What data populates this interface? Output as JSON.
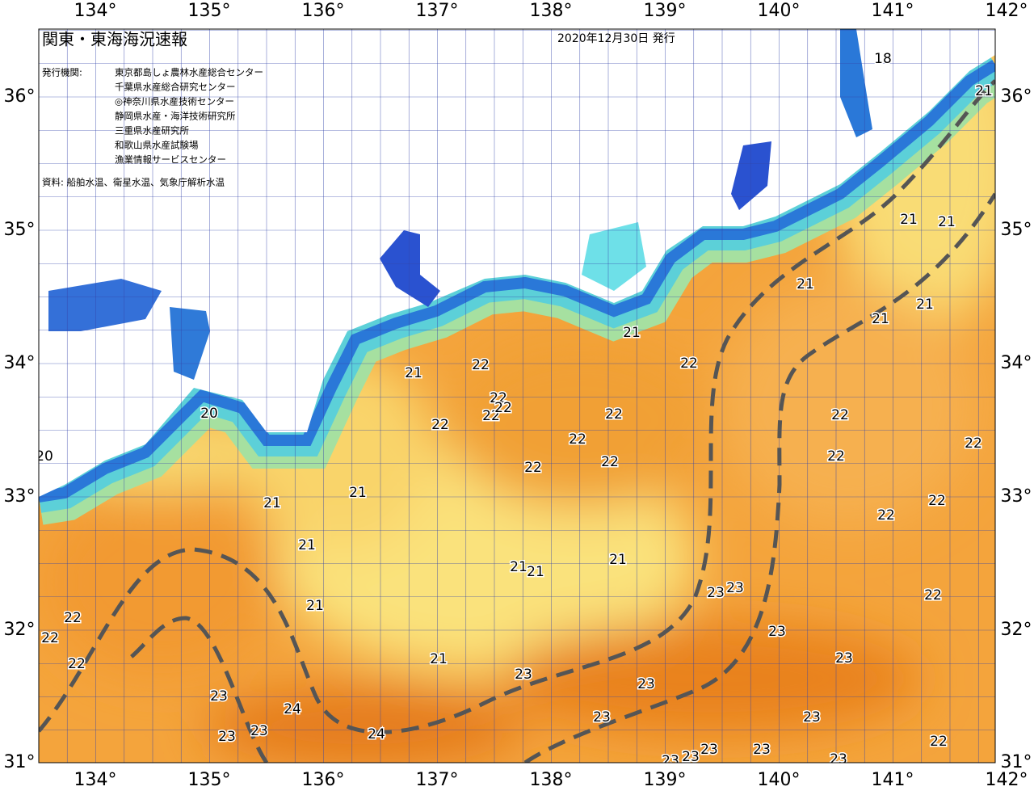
{
  "header": {
    "title": "関東・東海海況速報",
    "date": "2020年12月30日 発行"
  },
  "issuers": {
    "label": "発行機関:",
    "names": [
      "東京都島しょ農林水産総合センター",
      "千葉県水産総合研究センター",
      "◎神奈川県水産技術センター",
      "静岡県水産・海洋技術研究所",
      "三重県水産研究所",
      "和歌山県水産試験場",
      "漁業情報サービスセンター"
    ]
  },
  "source": "資料: 船舶水温、衛星水温、気象庁解析水温",
  "axes": {
    "longitudes": [
      "134°",
      "135°",
      "136°",
      "137°",
      "138°",
      "139°",
      "140°",
      "141°",
      "142°"
    ],
    "latitudes": [
      "36°",
      "35°",
      "34°",
      "33°",
      "32°",
      "31°"
    ]
  },
  "isotherm_labels": [
    "18",
    "21",
    "21",
    "21",
    "21",
    "21",
    "21",
    "21",
    "22",
    "21",
    "22",
    "22",
    "22",
    "22",
    "20",
    "22",
    "22",
    "22",
    "22",
    "22",
    "20",
    "22",
    "22",
    "22",
    "21",
    "21",
    "22",
    "22",
    "21",
    "21",
    "21",
    "21",
    "23",
    "23",
    "22",
    "21",
    "22",
    "22",
    "23",
    "22",
    "21",
    "23",
    "23",
    "23",
    "23",
    "24",
    "23",
    "23",
    "23",
    "23",
    "24",
    "22",
    "23",
    "23",
    "23",
    "23",
    "23"
  ]
}
